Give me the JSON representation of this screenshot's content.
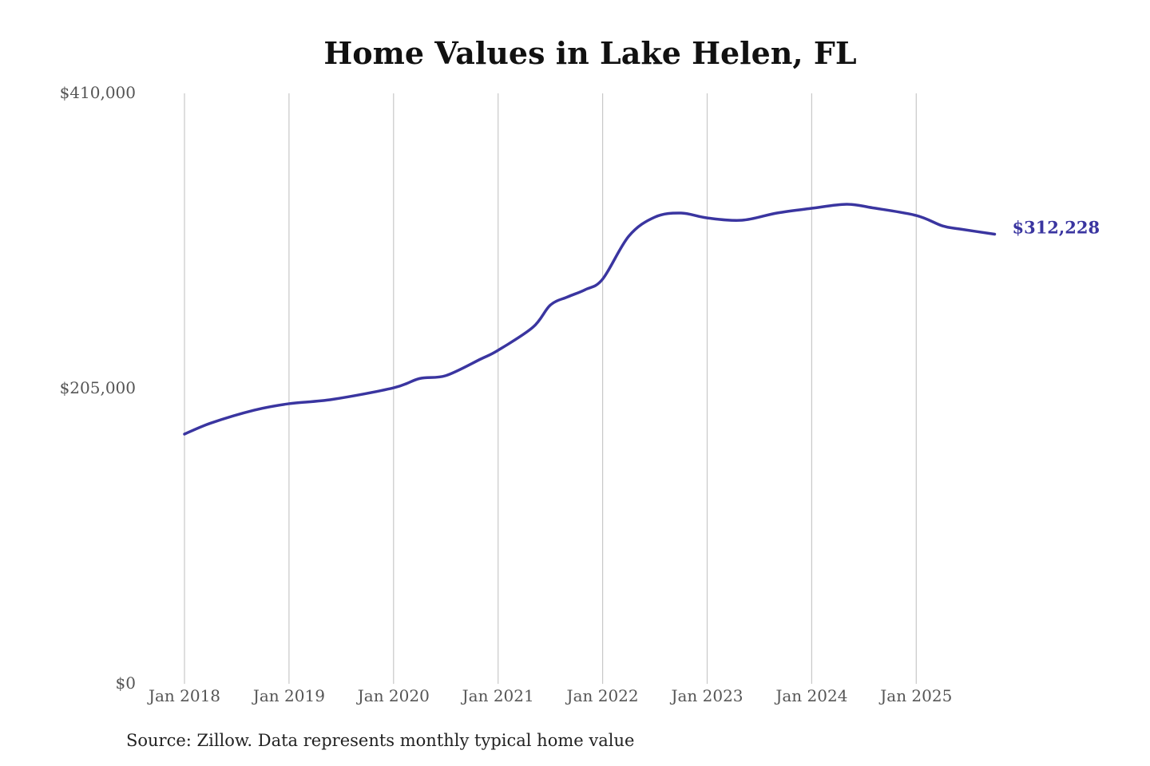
{
  "chart_data": {
    "type": "line",
    "title": "Home Values in Lake Helen, FL",
    "source": "Source: Zillow. Data represents monthly typical home value",
    "xlabel": "",
    "ylabel": "",
    "ylim": [
      0,
      410000
    ],
    "yticks": [
      {
        "value": 0,
        "label": "$0"
      },
      {
        "value": 205000,
        "label": "$205,000"
      },
      {
        "value": 410000,
        "label": "$410,000"
      }
    ],
    "xticks": [
      {
        "value": "2018-01",
        "label": "Jan 2018"
      },
      {
        "value": "2019-01",
        "label": "Jan 2019"
      },
      {
        "value": "2020-01",
        "label": "Jan 2020"
      },
      {
        "value": "2021-01",
        "label": "Jan 2021"
      },
      {
        "value": "2022-01",
        "label": "Jan 2022"
      },
      {
        "value": "2023-01",
        "label": "Jan 2023"
      },
      {
        "value": "2024-01",
        "label": "Jan 2024"
      },
      {
        "value": "2025-01",
        "label": "Jan 2025"
      }
    ],
    "grid": "vertical",
    "line_color": "#3a35a0",
    "end_label": "$312,228",
    "series": [
      {
        "x": [
          "2018-01",
          "2018-04",
          "2018-09",
          "2019-01",
          "2019-06",
          "2020-01",
          "2020-04",
          "2020-07",
          "2020-11",
          "2021-01",
          "2021-05",
          "2021-07",
          "2021-09",
          "2021-11",
          "2022-01",
          "2022-04",
          "2022-07",
          "2022-10",
          "2023-01",
          "2023-05",
          "2023-09",
          "2024-01",
          "2024-05",
          "2024-08",
          "2025-01",
          "2025-04",
          "2025-06",
          "2025-10"
        ],
        "y": [
          173400,
          181000,
          190000,
          194500,
          197500,
          205500,
          212000,
          214000,
          225500,
          231600,
          247600,
          263000,
          268700,
          273700,
          281000,
          310800,
          324100,
          326900,
          323500,
          321900,
          326900,
          330200,
          333000,
          330500,
          325200,
          318000,
          315800,
          312228
        ]
      }
    ]
  }
}
